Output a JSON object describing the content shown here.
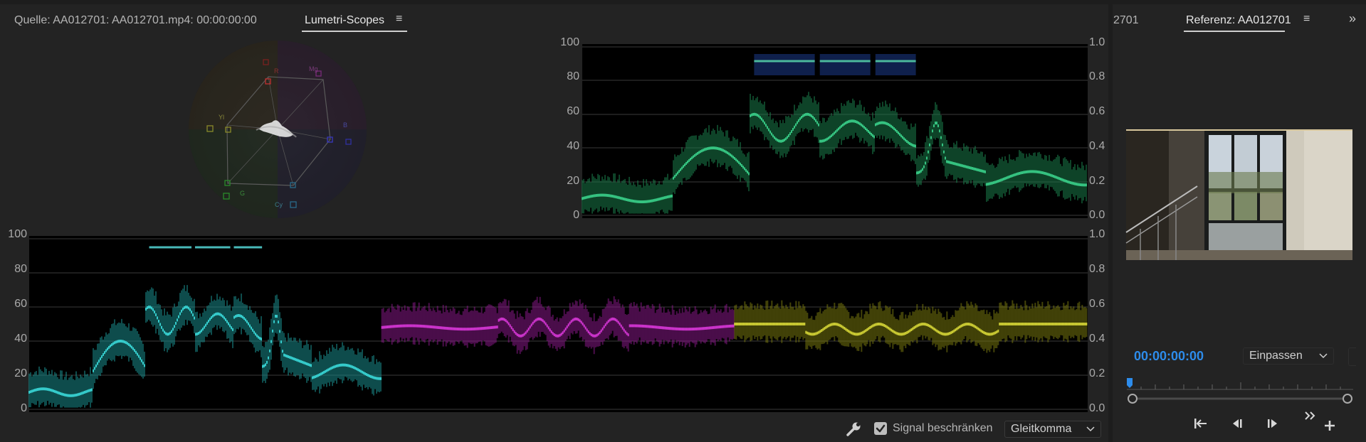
{
  "source_tab": {
    "label": "Quelle: AA012701: AA012701.mp4: 00:00:00:00"
  },
  "scopes_tab": {
    "label": "Lumetri-Scopes",
    "menu": "≡"
  },
  "reference_tab": {
    "partial_label": "2701",
    "label": "Referenz: AA012701",
    "menu": "≡",
    "overflow": "»"
  },
  "vectorscope": {
    "targets": [
      {
        "name": "R",
        "label": "R"
      },
      {
        "name": "Mg",
        "label": "Mg"
      },
      {
        "name": "B",
        "label": "B"
      },
      {
        "name": "Cy",
        "label": "Cy"
      },
      {
        "name": "G",
        "label": "G"
      },
      {
        "name": "Yl",
        "label": "Yl"
      }
    ]
  },
  "waveform": {
    "left_ticks": [
      "100",
      "80",
      "60",
      "40",
      "20",
      "0"
    ],
    "right_ticks": [
      "1.0",
      "0.8",
      "0.6",
      "0.4",
      "0.2",
      "0.0"
    ]
  },
  "parade": {
    "left_ticks": [
      "100",
      "80",
      "60",
      "40",
      "20",
      "0"
    ],
    "right_ticks": [
      "1.0",
      "0.8",
      "0.6",
      "0.4",
      "0.2",
      "0.0"
    ]
  },
  "bottom_bar": {
    "signal_clamp_label": "Signal beschränken",
    "signal_clamp_checked": true,
    "precision_value": "Gleitkomma",
    "chevron": "⌵"
  },
  "monitor": {
    "timecode": "00:00:00:00",
    "fit_value": "Einpassen",
    "timecode_color": "#2d8ceb"
  }
}
